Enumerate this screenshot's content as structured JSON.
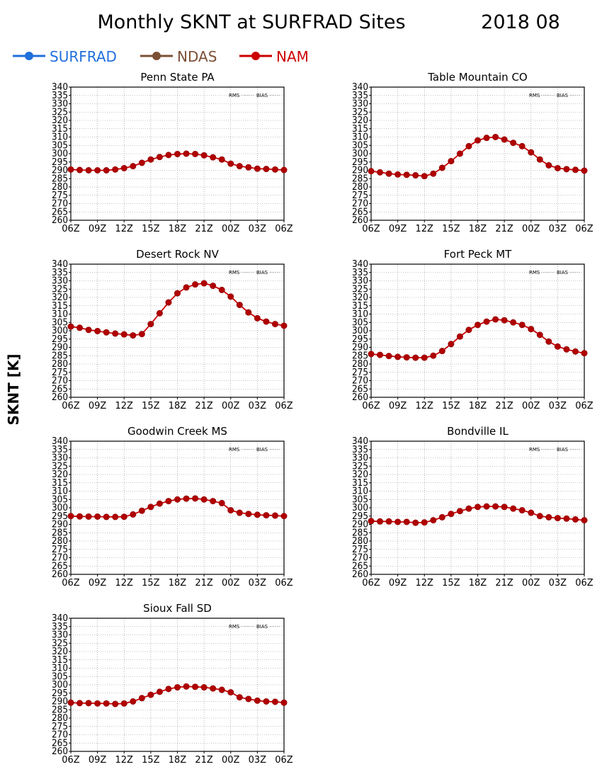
{
  "title": "Monthly SKNT at SURFRAD Sites",
  "date": "2018 08",
  "ylabel": "SKNT [K]",
  "legend": [
    {
      "name": "SURFRAD",
      "color": "#1f6fdc"
    },
    {
      "name": "NDAS",
      "color": "#7b5035"
    },
    {
      "name": "NAM",
      "color": "#cc0000"
    }
  ],
  "stat_labels": [
    "RMS",
    "BIAS"
  ],
  "x_ticks": [
    "06Z",
    "09Z",
    "12Z",
    "15Z",
    "18Z",
    "21Z",
    "00Z",
    "03Z",
    "06Z"
  ],
  "y_ticks": [
    260,
    265,
    270,
    275,
    280,
    285,
    290,
    295,
    300,
    305,
    310,
    315,
    320,
    325,
    330,
    335,
    340
  ],
  "ylim": [
    260,
    340
  ],
  "colors": {
    "nam": "#cc0000",
    "nam_marker": "#b00000",
    "grid": "#888888"
  },
  "chart_data": [
    {
      "type": "line",
      "title": "Penn State PA",
      "ylim": [
        260,
        340
      ],
      "x": [
        "06Z",
        "07Z",
        "08Z",
        "09Z",
        "10Z",
        "11Z",
        "12Z",
        "13Z",
        "14Z",
        "15Z",
        "16Z",
        "17Z",
        "18Z",
        "19Z",
        "20Z",
        "21Z",
        "22Z",
        "23Z",
        "00Z",
        "01Z",
        "02Z",
        "03Z",
        "04Z",
        "05Z",
        "06Z"
      ],
      "series": [
        {
          "name": "NAM",
          "values": [
            290.5,
            290.2,
            290.0,
            290.0,
            290.0,
            290.5,
            291.3,
            292.5,
            294.5,
            296.5,
            298.0,
            299.2,
            299.8,
            300.0,
            299.8,
            299.0,
            297.8,
            296.5,
            294.0,
            292.5,
            291.8,
            291.0,
            290.8,
            290.5,
            290.2
          ]
        }
      ]
    },
    {
      "type": "line",
      "title": "Table Mountain CO",
      "ylim": [
        260,
        340
      ],
      "x": [
        "06Z",
        "07Z",
        "08Z",
        "09Z",
        "10Z",
        "11Z",
        "12Z",
        "13Z",
        "14Z",
        "15Z",
        "16Z",
        "17Z",
        "18Z",
        "19Z",
        "20Z",
        "21Z",
        "22Z",
        "23Z",
        "00Z",
        "01Z",
        "02Z",
        "03Z",
        "04Z",
        "05Z",
        "06Z"
      ],
      "series": [
        {
          "name": "NAM",
          "values": [
            289.5,
            288.8,
            288.0,
            287.5,
            287.3,
            287.0,
            286.5,
            288.0,
            291.5,
            295.5,
            300.0,
            304.5,
            308.0,
            309.5,
            310.0,
            308.5,
            306.5,
            304.5,
            300.8,
            296.5,
            293.0,
            291.3,
            290.7,
            290.3,
            289.8
          ]
        }
      ]
    },
    {
      "type": "line",
      "title": "Desert Rock NV",
      "ylim": [
        260,
        340
      ],
      "x": [
        "06Z",
        "07Z",
        "08Z",
        "09Z",
        "10Z",
        "11Z",
        "12Z",
        "13Z",
        "14Z",
        "15Z",
        "16Z",
        "17Z",
        "18Z",
        "19Z",
        "20Z",
        "21Z",
        "22Z",
        "23Z",
        "00Z",
        "01Z",
        "02Z",
        "03Z",
        "04Z",
        "05Z",
        "06Z"
      ],
      "series": [
        {
          "name": "NAM",
          "values": [
            302.5,
            301.8,
            300.5,
            299.8,
            299.0,
            298.3,
            297.8,
            297.2,
            298.0,
            304.0,
            310.5,
            317.0,
            322.5,
            326.0,
            327.8,
            328.5,
            327.0,
            324.5,
            320.5,
            315.5,
            311.0,
            307.5,
            305.5,
            304.0,
            303.0
          ]
        }
      ]
    },
    {
      "type": "line",
      "title": "Fort Peck MT",
      "ylim": [
        260,
        340
      ],
      "x": [
        "06Z",
        "07Z",
        "08Z",
        "09Z",
        "10Z",
        "11Z",
        "12Z",
        "13Z",
        "14Z",
        "15Z",
        "16Z",
        "17Z",
        "18Z",
        "19Z",
        "20Z",
        "21Z",
        "22Z",
        "23Z",
        "00Z",
        "01Z",
        "02Z",
        "03Z",
        "04Z",
        "05Z",
        "06Z"
      ],
      "series": [
        {
          "name": "NAM",
          "values": [
            286.0,
            285.5,
            284.8,
            284.3,
            284.0,
            283.8,
            283.8,
            285.0,
            287.8,
            292.0,
            296.5,
            300.5,
            303.5,
            305.5,
            306.8,
            306.3,
            305.0,
            303.5,
            301.0,
            297.5,
            293.5,
            290.5,
            288.8,
            287.5,
            286.5
          ]
        }
      ]
    },
    {
      "type": "line",
      "title": "Goodwin Creek MS",
      "ylim": [
        260,
        340
      ],
      "x": [
        "06Z",
        "07Z",
        "08Z",
        "09Z",
        "10Z",
        "11Z",
        "12Z",
        "13Z",
        "14Z",
        "15Z",
        "16Z",
        "17Z",
        "18Z",
        "19Z",
        "20Z",
        "21Z",
        "22Z",
        "23Z",
        "00Z",
        "01Z",
        "02Z",
        "03Z",
        "04Z",
        "05Z",
        "06Z"
      ],
      "series": [
        {
          "name": "NAM",
          "values": [
            295.0,
            294.8,
            294.7,
            294.7,
            294.5,
            294.5,
            294.6,
            296.0,
            298.2,
            300.5,
            302.5,
            304.0,
            305.0,
            305.5,
            305.6,
            305.0,
            304.0,
            302.8,
            298.5,
            297.0,
            296.3,
            295.8,
            295.5,
            295.3,
            295.0
          ]
        }
      ]
    },
    {
      "type": "line",
      "title": "Bondville IL",
      "ylim": [
        260,
        340
      ],
      "x": [
        "06Z",
        "07Z",
        "08Z",
        "09Z",
        "10Z",
        "11Z",
        "12Z",
        "13Z",
        "14Z",
        "15Z",
        "16Z",
        "17Z",
        "18Z",
        "19Z",
        "20Z",
        "21Z",
        "22Z",
        "23Z",
        "00Z",
        "01Z",
        "02Z",
        "03Z",
        "04Z",
        "05Z",
        "06Z"
      ],
      "series": [
        {
          "name": "NAM",
          "values": [
            292.0,
            291.8,
            291.8,
            291.5,
            291.5,
            291.0,
            291.2,
            292.5,
            294.3,
            296.3,
            298.0,
            299.5,
            300.5,
            300.8,
            300.8,
            300.5,
            299.5,
            298.5,
            297.0,
            295.0,
            294.3,
            293.8,
            293.5,
            293.0,
            292.5
          ]
        }
      ]
    },
    {
      "type": "line",
      "title": "Sioux Fall SD",
      "ylim": [
        260,
        340
      ],
      "x": [
        "06Z",
        "07Z",
        "08Z",
        "09Z",
        "10Z",
        "11Z",
        "12Z",
        "13Z",
        "14Z",
        "15Z",
        "16Z",
        "17Z",
        "18Z",
        "19Z",
        "20Z",
        "21Z",
        "22Z",
        "23Z",
        "00Z",
        "01Z",
        "02Z",
        "03Z",
        "04Z",
        "05Z",
        "06Z"
      ],
      "series": [
        {
          "name": "NAM",
          "values": [
            289.3,
            289.0,
            289.0,
            288.8,
            288.8,
            288.5,
            288.8,
            290.0,
            292.0,
            294.0,
            295.8,
            297.5,
            298.5,
            299.0,
            298.8,
            298.5,
            297.8,
            297.0,
            295.5,
            292.5,
            291.5,
            290.5,
            290.0,
            289.8,
            289.3
          ]
        }
      ]
    }
  ]
}
